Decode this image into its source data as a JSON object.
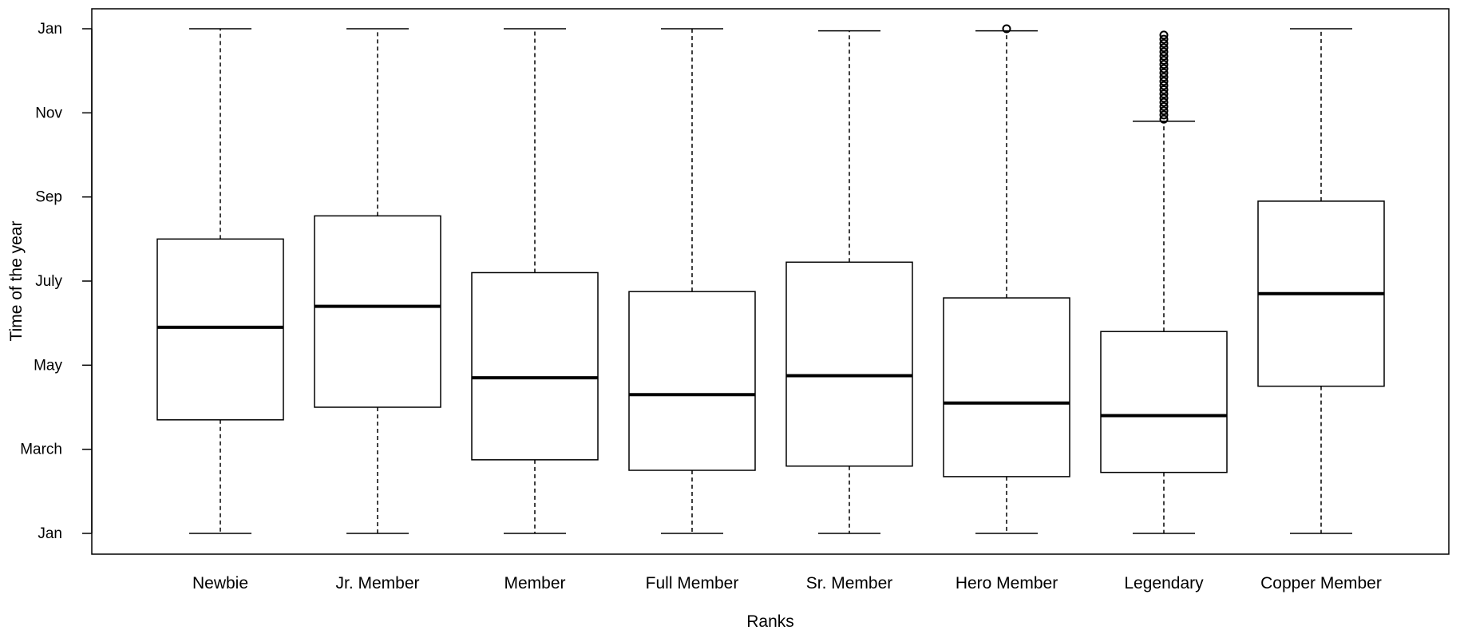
{
  "chart_data": {
    "type": "boxplot",
    "xlabel": "Ranks",
    "ylabel": "Time of the year",
    "y_ticks": [
      {
        "label": "Jan",
        "value": 0
      },
      {
        "label": "March",
        "value": 2
      },
      {
        "label": "May",
        "value": 4
      },
      {
        "label": "July",
        "value": 6
      },
      {
        "label": "Sep",
        "value": 8
      },
      {
        "label": "Nov",
        "value": 10
      },
      {
        "label": "Jan",
        "value": 12
      }
    ],
    "ylim": [
      0,
      12
    ],
    "categories": [
      "Newbie",
      "Jr. Member",
      "Member",
      "Full Member",
      "Sr. Member",
      "Hero Member",
      "Legendary",
      "Copper Member"
    ],
    "boxes": [
      {
        "category": "Newbie",
        "min": 0,
        "q1": 2.7,
        "median": 4.9,
        "q3": 7.0,
        "max": 12,
        "outliers": []
      },
      {
        "category": "Jr. Member",
        "min": 0,
        "q1": 3.0,
        "median": 5.4,
        "q3": 7.55,
        "max": 12,
        "outliers": []
      },
      {
        "category": "Member",
        "min": 0,
        "q1": 1.75,
        "median": 3.7,
        "q3": 6.2,
        "max": 12,
        "outliers": []
      },
      {
        "category": "Full Member",
        "min": 0,
        "q1": 1.5,
        "median": 3.3,
        "q3": 5.75,
        "max": 12,
        "outliers": []
      },
      {
        "category": "Sr. Member",
        "min": 0,
        "q1": 1.6,
        "median": 3.75,
        "q3": 6.45,
        "max": 11.95,
        "outliers": []
      },
      {
        "category": "Hero Member",
        "min": 0,
        "q1": 1.35,
        "median": 3.1,
        "q3": 5.6,
        "max": 11.95,
        "outliers": [
          12
        ]
      },
      {
        "category": "Legendary",
        "min": 0,
        "q1": 1.45,
        "median": 2.8,
        "q3": 4.8,
        "max": 9.8,
        "outliers": [
          9.85,
          9.95,
          10.05,
          10.15,
          10.25,
          10.35,
          10.45,
          10.55,
          10.65,
          10.75,
          10.85,
          10.95,
          11.05,
          11.15,
          11.25,
          11.35,
          11.45,
          11.55,
          11.65,
          11.75,
          11.85
        ]
      },
      {
        "category": "Copper Member",
        "min": 0,
        "q1": 3.5,
        "median": 5.7,
        "q3": 7.9,
        "max": 12,
        "outliers": []
      }
    ]
  }
}
